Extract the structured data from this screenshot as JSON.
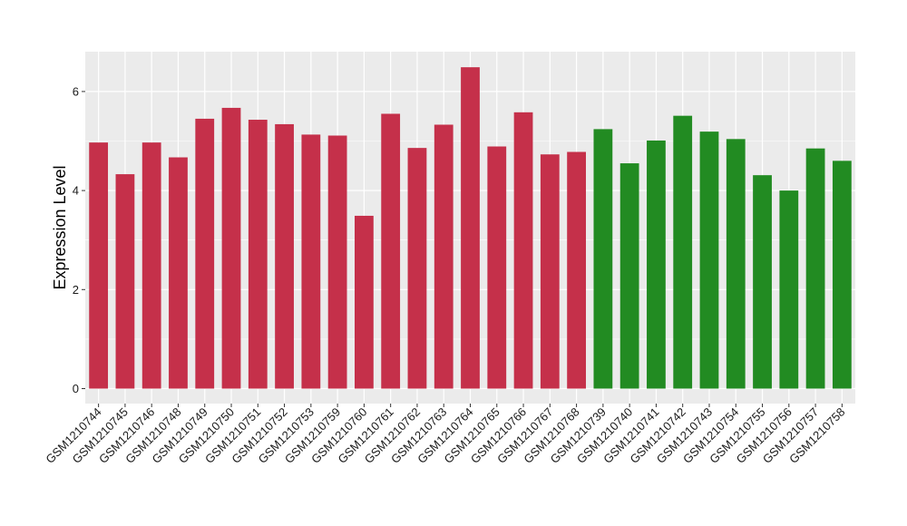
{
  "chart_data": {
    "type": "bar",
    "ylabel": "Expression Level",
    "xlabel": "",
    "ylim": [
      -0.3,
      6.8
    ],
    "yticks": [
      0,
      2,
      4,
      6
    ],
    "grid": true,
    "colors": {
      "group1": "#C5304A",
      "group2": "#228B22",
      "panel": "#EBEBEB",
      "grid": "#FFFFFF"
    },
    "categories": [
      "GSM1210744",
      "GSM1210745",
      "GSM1210746",
      "GSM1210748",
      "GSM1210749",
      "GSM1210750",
      "GSM1210751",
      "GSM1210752",
      "GSM1210753",
      "GSM1210759",
      "GSM1210760",
      "GSM1210761",
      "GSM1210762",
      "GSM1210763",
      "GSM1210764",
      "GSM1210765",
      "GSM1210766",
      "GSM1210767",
      "GSM1210768",
      "GSM1210739",
      "GSM1210740",
      "GSM1210741",
      "GSM1210742",
      "GSM1210743",
      "GSM1210754",
      "GSM1210755",
      "GSM1210756",
      "GSM1210757",
      "GSM1210758"
    ],
    "values": [
      4.97,
      4.33,
      4.97,
      4.67,
      5.45,
      5.67,
      5.43,
      5.34,
      5.13,
      5.11,
      3.49,
      5.55,
      4.86,
      5.33,
      6.49,
      4.89,
      5.58,
      4.73,
      4.78,
      5.24,
      4.55,
      5.01,
      5.51,
      5.19,
      5.04,
      4.31,
      4.0,
      4.85,
      4.6
    ],
    "groups": [
      "group1",
      "group1",
      "group1",
      "group1",
      "group1",
      "group1",
      "group1",
      "group1",
      "group1",
      "group1",
      "group1",
      "group1",
      "group1",
      "group1",
      "group1",
      "group1",
      "group1",
      "group1",
      "group1",
      "group2",
      "group2",
      "group2",
      "group2",
      "group2",
      "group2",
      "group2",
      "group2",
      "group2",
      "group2"
    ]
  }
}
